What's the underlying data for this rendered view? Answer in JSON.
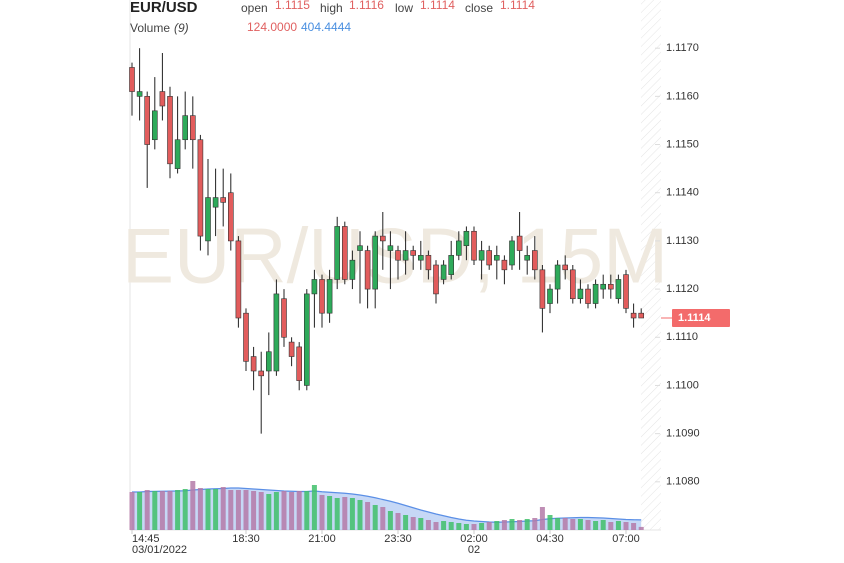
{
  "header": {
    "symbol": "EUR/USD",
    "open_label": "open",
    "open": "1.1115",
    "high_label": "high",
    "high": "1.1116",
    "low_label": "low",
    "low": "1.1114",
    "close_label": "close",
    "close": "1.1114",
    "volume_label": "Volume",
    "volume_period": "(9)",
    "volume": "124.0000",
    "volume_ma": "404.4444"
  },
  "chart_data": {
    "type": "candlestick",
    "watermark": "EUR/USD, 15M",
    "ylim": [
      1.107,
      1.118
    ],
    "yticks": [
      {
        "value": 1.117,
        "label": "1.1170"
      },
      {
        "value": 1.116,
        "label": "1.1160"
      },
      {
        "value": 1.115,
        "label": "1.1150"
      },
      {
        "value": 1.114,
        "label": "1.1140"
      },
      {
        "value": 1.113,
        "label": "1.1130"
      },
      {
        "value": 1.112,
        "label": "1.1120"
      },
      {
        "value": 1.111,
        "label": "1.1110"
      },
      {
        "value": 1.11,
        "label": "1.1100"
      },
      {
        "value": 1.109,
        "label": "1.1090"
      },
      {
        "value": 1.108,
        "label": "1.1080"
      }
    ],
    "xticks": [
      {
        "value": 0,
        "label": "14:45"
      },
      {
        "value": 15,
        "label": "18:30"
      },
      {
        "value": 25,
        "label": "21:00"
      },
      {
        "value": 35,
        "label": "23:30"
      },
      {
        "value": 45,
        "label": "02:00"
      },
      {
        "value": 55,
        "label": "04:30"
      },
      {
        "value": 65,
        "label": "07:00"
      }
    ],
    "xsublabels": [
      {
        "value": 0,
        "label": "03/01/2022"
      },
      {
        "value": 45,
        "label": "02"
      }
    ],
    "last_price": 1.1114,
    "up_color": "#2eaa5a",
    "down_color": "#e25c5c",
    "volume_up_color": "#3fbf6a",
    "volume_down_color": "#b47aa8",
    "ma_color": "#5b8fe6",
    "last_price_color": "#f36b6b",
    "open": [
      1.1166,
      1.116,
      1.116,
      1.1151,
      1.1161,
      1.116,
      1.1145,
      1.1151,
      1.1156,
      1.1151,
      1.113,
      1.1137,
      1.1139,
      1.114,
      1.113,
      1.1115,
      1.1106,
      1.1103,
      1.1103,
      1.1103,
      1.1118,
      1.1109,
      1.1108,
      1.11,
      1.1119,
      1.1122,
      1.1115,
      1.1122,
      1.1133,
      1.1122,
      1.1128,
      1.1128,
      1.112,
      1.1131,
      1.1128,
      1.1128,
      1.1126,
      1.1128,
      1.1126,
      1.1127,
      1.1125,
      1.1122,
      1.1123,
      1.1127,
      1.1129,
      1.1132,
      1.1126,
      1.1128,
      1.1126,
      1.1126,
      1.1125,
      1.1131,
      1.1126,
      1.1128,
      1.1124,
      1.1117,
      1.112,
      1.1125,
      1.1124,
      1.1118,
      1.112,
      1.1117,
      1.112,
      1.1121,
      1.1118,
      1.1123,
      1.1115,
      1.1115
    ],
    "high": [
      1.1167,
      1.117,
      1.1161,
      1.1164,
      1.1169,
      1.1162,
      1.116,
      1.1161,
      1.116,
      1.1152,
      1.1147,
      1.1145,
      1.1145,
      1.1144,
      1.1131,
      1.1116,
      1.1108,
      1.1107,
      1.1111,
      1.1122,
      1.112,
      1.111,
      1.1109,
      1.112,
      1.1124,
      1.1123,
      1.1124,
      1.1135,
      1.1134,
      1.1128,
      1.1132,
      1.1129,
      1.1132,
      1.1136,
      1.1132,
      1.1129,
      1.1132,
      1.1129,
      1.113,
      1.1128,
      1.1126,
      1.1126,
      1.113,
      1.1132,
      1.1133,
      1.1133,
      1.113,
      1.1129,
      1.1129,
      1.1127,
      1.1131,
      1.1136,
      1.1129,
      1.1131,
      1.1125,
      1.1121,
      1.1126,
      1.1127,
      1.1125,
      1.1122,
      1.1121,
      1.1122,
      1.1123,
      1.1123,
      1.1123,
      1.1124,
      1.1117,
      1.1116
    ],
    "low": [
      1.1156,
      1.1155,
      1.1141,
      1.1149,
      1.1155,
      1.1143,
      1.1144,
      1.1149,
      1.1145,
      1.1128,
      1.1127,
      1.1131,
      1.1133,
      1.1128,
      1.1112,
      1.1103,
      1.1099,
      1.109,
      1.1098,
      1.1102,
      1.1108,
      1.1104,
      1.1099,
      1.1099,
      1.1112,
      1.1112,
      1.1113,
      1.112,
      1.1121,
      1.112,
      1.1117,
      1.1116,
      1.1116,
      1.1124,
      1.112,
      1.1122,
      1.1123,
      1.1124,
      1.1124,
      1.1122,
      1.1117,
      1.1121,
      1.1122,
      1.1126,
      1.1126,
      1.1125,
      1.1122,
      1.1124,
      1.1122,
      1.1121,
      1.1124,
      1.1124,
      1.1123,
      1.1122,
      1.1111,
      1.1115,
      1.1117,
      1.1122,
      1.1117,
      1.1117,
      1.1116,
      1.1116,
      1.1118,
      1.1118,
      1.1117,
      1.1115,
      1.1112,
      1.1114
    ],
    "close": [
      1.1161,
      1.1161,
      1.115,
      1.1157,
      1.1158,
      1.1146,
      1.1151,
      1.1156,
      1.1151,
      1.1131,
      1.1139,
      1.1139,
      1.1138,
      1.113,
      1.1114,
      1.1105,
      1.1103,
      1.1102,
      1.1107,
      1.1119,
      1.111,
      1.1106,
      1.1101,
      1.1119,
      1.1122,
      1.1115,
      1.1122,
      1.1133,
      1.1122,
      1.1126,
      1.1129,
      1.112,
      1.1131,
      1.113,
      1.1129,
      1.1126,
      1.1128,
      1.1127,
      1.1127,
      1.1124,
      1.1119,
      1.1125,
      1.1127,
      1.113,
      1.1132,
      1.1126,
      1.1128,
      1.1125,
      1.1127,
      1.1124,
      1.113,
      1.1128,
      1.1127,
      1.1124,
      1.1116,
      1.112,
      1.1125,
      1.1124,
      1.1118,
      1.112,
      1.1117,
      1.1121,
      1.1121,
      1.112,
      1.1122,
      1.1116,
      1.1114,
      1.1114
    ],
    "vlim": [
      0,
      2400
    ],
    "volume": [
      1520,
      1520,
      1600,
      1560,
      1560,
      1560,
      1600,
      1640,
      1960,
      1680,
      1640,
      1640,
      1720,
      1600,
      1600,
      1600,
      1560,
      1520,
      1440,
      1520,
      1560,
      1520,
      1560,
      1560,
      1800,
      1400,
      1360,
      1280,
      1320,
      1280,
      1200,
      1120,
      1000,
      920,
      760,
      680,
      600,
      520,
      480,
      400,
      320,
      360,
      320,
      280,
      240,
      240,
      280,
      320,
      360,
      400,
      440,
      400,
      440,
      480,
      920,
      600,
      480,
      480,
      440,
      440,
      400,
      360,
      400,
      320,
      360,
      320,
      280,
      124
    ],
    "volume_ma": [
      1520,
      1520,
      1540,
      1545,
      1550,
      1555,
      1560,
      1570,
      1600,
      1620,
      1640,
      1650,
      1660,
      1680,
      1680,
      1660,
      1640,
      1620,
      1600,
      1580,
      1560,
      1550,
      1540,
      1540,
      1560,
      1530,
      1510,
      1490,
      1470,
      1440,
      1400,
      1350,
      1290,
      1220,
      1150,
      1070,
      980,
      890,
      800,
      720,
      640,
      570,
      500,
      440,
      390,
      360,
      340,
      320,
      310,
      320,
      330,
      340,
      360,
      370,
      420,
      450,
      470,
      480,
      490,
      500,
      500,
      490,
      480,
      460,
      440,
      420,
      410,
      404.4444
    ]
  }
}
